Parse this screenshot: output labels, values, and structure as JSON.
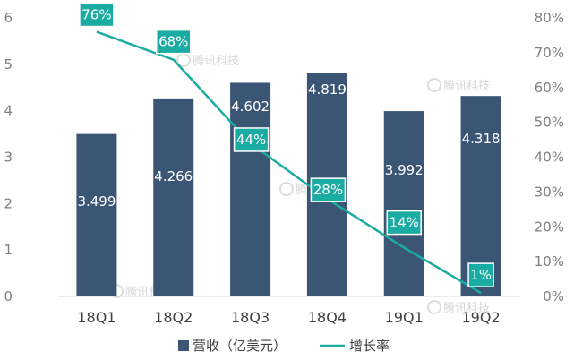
{
  "chart_data": {
    "type": "bar",
    "categories": [
      "18Q1",
      "18Q2",
      "18Q3",
      "18Q4",
      "19Q1",
      "19Q2"
    ],
    "series": [
      {
        "name": "营收（亿美元）",
        "type": "bar",
        "axis": "left",
        "color": "#3b5675",
        "values": [
          3.499,
          4.266,
          4.602,
          4.819,
          3.992,
          4.318
        ],
        "labels": [
          "3.499",
          "4.266",
          "4.602",
          "4.819",
          "3.992",
          "4.318"
        ]
      },
      {
        "name": "增长率",
        "type": "line",
        "axis": "right",
        "color": "#1aaba2",
        "values": [
          76,
          68,
          44,
          28,
          14,
          1
        ],
        "labels": [
          "76%",
          "68%",
          "44%",
          "28%",
          "14%",
          "1%"
        ]
      }
    ],
    "ylim_left": [
      0,
      6
    ],
    "yticks_left": [
      "0",
      "1",
      "2",
      "3",
      "4",
      "5",
      "6"
    ],
    "ylim_right": [
      0,
      80
    ],
    "yticks_right": [
      "0%",
      "10%",
      "20%",
      "30%",
      "40%",
      "50%",
      "60%",
      "70%",
      "80%"
    ],
    "legend_position": "bottom",
    "grid": false,
    "watermark": "腾讯科技"
  }
}
